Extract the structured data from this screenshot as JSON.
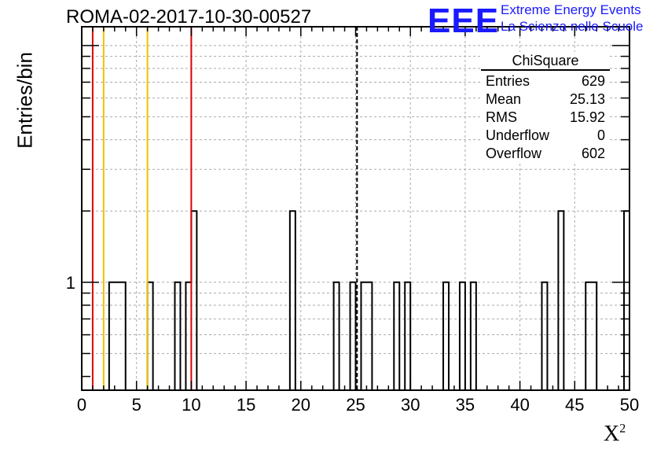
{
  "header": {
    "title": "ROMA-02-2017-10-30-00527",
    "logo_letters": "EEE",
    "logo_line1": "Extreme Energy Events",
    "logo_line2": "La Scienza nelle Scuole"
  },
  "stats_box": {
    "title": "ChiSquare",
    "rows": [
      {
        "label": "Entries",
        "value": "629"
      },
      {
        "label": "Mean",
        "value": "25.13"
      },
      {
        "label": "RMS",
        "value": "15.92"
      },
      {
        "label": "Underflow",
        "value": "0"
      },
      {
        "label": "Overflow",
        "value": "602"
      }
    ]
  },
  "chart_data": {
    "type": "bar",
    "title": "ROMA-02-2017-10-30-00527",
    "xlabel": "X",
    "xlabel_superscript": "2",
    "ylabel": "Entries/bin",
    "xlim": [
      0,
      50
    ],
    "yscale": "log",
    "ylim": [
      0.35,
      12
    ],
    "bin_width": 0.5,
    "x_ticks": [
      0,
      5,
      10,
      15,
      20,
      25,
      30,
      35,
      40,
      45,
      50
    ],
    "y_tick_labels": [
      {
        "value": 1,
        "label": "1"
      }
    ],
    "grid": true,
    "bins": [
      {
        "x": 2.5,
        "count": 1
      },
      {
        "x": 3.0,
        "count": 1
      },
      {
        "x": 3.5,
        "count": 1
      },
      {
        "x": 6.0,
        "count": 1
      },
      {
        "x": 8.5,
        "count": 1
      },
      {
        "x": 9.5,
        "count": 1
      },
      {
        "x": 10.0,
        "count": 2
      },
      {
        "x": 19.0,
        "count": 2
      },
      {
        "x": 23.0,
        "count": 1
      },
      {
        "x": 24.5,
        "count": 1
      },
      {
        "x": 25.5,
        "count": 1
      },
      {
        "x": 26.0,
        "count": 1
      },
      {
        "x": 28.5,
        "count": 1
      },
      {
        "x": 29.5,
        "count": 1
      },
      {
        "x": 33.0,
        "count": 1
      },
      {
        "x": 34.5,
        "count": 1
      },
      {
        "x": 35.5,
        "count": 1
      },
      {
        "x": 42.0,
        "count": 1
      },
      {
        "x": 43.5,
        "count": 2
      },
      {
        "x": 46.0,
        "count": 1
      },
      {
        "x": 46.5,
        "count": 1
      },
      {
        "x": 49.5,
        "count": 2
      }
    ],
    "vertical_lines": [
      {
        "x": 1.0,
        "color": "#dd0000",
        "style": "solid"
      },
      {
        "x": 2.0,
        "color": "#f0c000",
        "style": "solid"
      },
      {
        "x": 6.0,
        "color": "#f0c000",
        "style": "solid"
      },
      {
        "x": 10.0,
        "color": "#dd0000",
        "style": "solid"
      },
      {
        "x": 25.13,
        "color": "#000000",
        "style": "dashed"
      }
    ]
  }
}
